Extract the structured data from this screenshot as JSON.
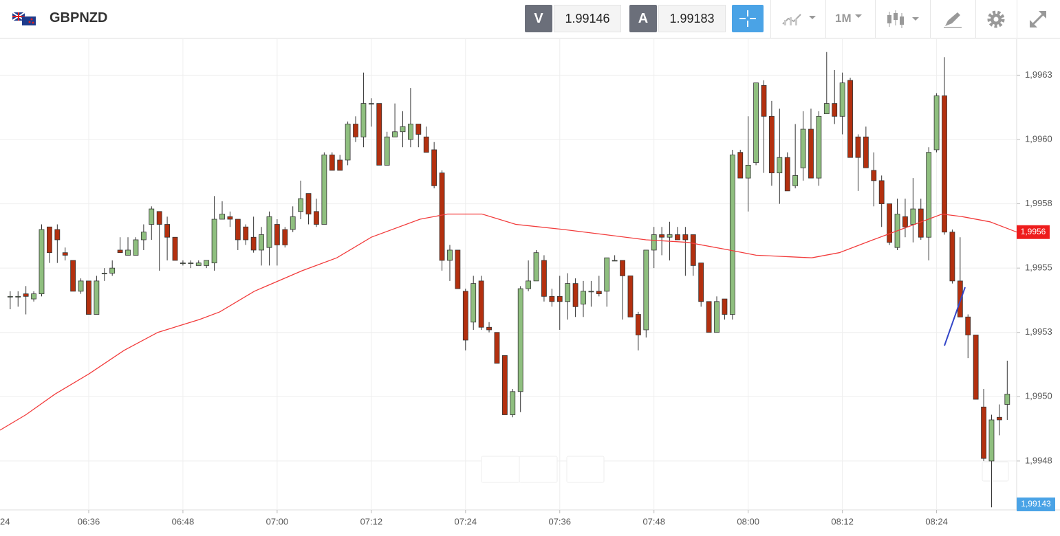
{
  "toolbar": {
    "symbol": "GBPNZD",
    "sell_label": "V",
    "sell_price": "1.99146",
    "buy_label": "A",
    "buy_price": "1.99183",
    "timeframe": "1M"
  },
  "chart_data": {
    "type": "candlestick",
    "x": [
      386,
      387,
      388,
      389,
      390,
      391,
      392,
      393,
      394,
      395,
      396,
      397,
      398,
      399,
      400,
      401,
      402,
      403,
      404,
      405,
      406,
      407,
      408,
      409,
      410,
      411,
      412,
      413,
      414,
      415,
      416,
      417,
      418,
      419,
      420,
      421,
      422,
      423,
      424,
      425,
      426,
      427,
      428,
      429,
      430,
      431,
      432,
      433,
      434,
      435,
      436,
      437,
      438,
      439,
      440,
      441,
      442,
      443,
      444,
      445,
      446,
      447,
      448,
      449,
      450,
      451,
      452,
      453,
      454,
      455,
      456,
      457,
      458,
      459,
      460,
      461,
      462,
      463,
      464,
      465,
      466,
      467,
      468,
      469,
      470,
      471,
      472,
      473,
      474,
      475,
      476,
      477,
      478,
      479,
      480,
      481,
      482,
      483,
      484,
      485,
      486,
      487,
      488,
      489,
      490,
      491,
      492,
      493,
      494,
      495,
      496,
      497,
      498,
      499,
      500,
      501,
      502,
      503,
      504,
      505,
      506,
      507,
      508,
      509,
      510,
      511,
      512,
      513
    ],
    "open": [
      1.99539,
      1.99539,
      1.9954,
      1.99538,
      1.9954,
      1.99566,
      1.99565,
      1.99556,
      1.99553,
      1.99541,
      1.99545,
      1.99532,
      1.99548,
      1.99548,
      1.99557,
      1.99555,
      1.99555,
      1.99561,
      1.99567,
      1.99572,
      1.99567,
      1.99562,
      1.99552,
      1.99552,
      1.99551,
      1.99551,
      1.99552,
      1.99569,
      1.9957,
      1.99569,
      1.99566,
      1.99562,
      1.99557,
      1.99558,
      1.99567,
      1.99565,
      1.99565,
      1.99572,
      1.99579,
      1.99572,
      1.99567,
      1.99594,
      1.99592,
      1.99592,
      1.99606,
      1.99601,
      1.99614,
      1.99614,
      1.9959,
      1.99601,
      1.99603,
      1.996,
      1.99606,
      1.99601,
      1.99596,
      1.99587,
      1.99553,
      1.99557,
      1.99541,
      1.99529,
      1.99545,
      1.99527,
      1.99525,
      1.99516,
      1.99493,
      1.99502,
      1.99542,
      1.99545,
      1.99553,
      1.99539,
      1.99539,
      1.99537,
      1.99544,
      1.99536,
      1.99541,
      1.99541,
      1.99541,
      1.99553,
      1.99553,
      1.99547,
      1.99532,
      1.99526,
      1.99557,
      1.99563,
      1.99562,
      1.99563,
      1.99563,
      1.99563,
      1.99552,
      1.99537,
      1.99525,
      1.99538,
      1.99532,
      1.99595,
      1.99585,
      1.99591,
      1.99621,
      1.99609,
      1.99587,
      1.99593,
      1.99582,
      1.99589,
      1.99604,
      1.99585,
      1.9961,
      1.99614,
      1.99609,
      1.99623,
      1.99601,
      1.99601,
      1.99588,
      1.99584,
      1.99575,
      1.99558,
      1.9957,
      1.99567,
      1.99573,
      1.99562,
      1.99596,
      1.99617,
      1.99564,
      1.99545,
      1.99531,
      1.99524,
      1.99496,
      1.99475,
      1.99492,
      1.99497
    ],
    "high": [
      1.99541,
      1.99541,
      1.99543,
      1.99541,
      1.99567,
      1.99566,
      1.99567,
      1.99558,
      1.99553,
      1.99546,
      1.99545,
      1.99547,
      1.9955,
      1.99553,
      1.99562,
      1.99562,
      1.99562,
      1.99567,
      1.99574,
      1.99572,
      1.9957,
      1.99562,
      1.99553,
      1.99553,
      1.99553,
      1.99553,
      1.99578,
      1.99576,
      1.99572,
      1.99569,
      1.99567,
      1.9957,
      1.99566,
      1.99572,
      1.99569,
      1.99566,
      1.99574,
      1.99584,
      1.99579,
      1.99577,
      1.99595,
      1.99595,
      1.99594,
      1.99607,
      1.99609,
      1.99626,
      1.99616,
      1.99614,
      1.99603,
      1.99614,
      1.99611,
      1.9962,
      1.99606,
      1.99605,
      1.99599,
      1.99588,
      1.99559,
      1.99557,
      1.99542,
      1.99547,
      1.99547,
      1.99529,
      1.99525,
      1.99516,
      1.99503,
      1.99543,
      1.99553,
      1.99557,
      1.99555,
      1.99542,
      1.99547,
      1.99548,
      1.99546,
      1.99545,
      1.99545,
      1.99547,
      1.99554,
      1.99555,
      1.99553,
      1.99547,
      1.99533,
      1.99557,
      1.99566,
      1.99566,
      1.99568,
      1.99566,
      1.99566,
      1.99563,
      1.99552,
      1.99537,
      1.99539,
      1.99538,
      1.99596,
      1.99596,
      1.99609,
      1.99622,
      1.99623,
      1.99615,
      1.99612,
      1.99595,
      1.99606,
      1.99611,
      1.99612,
      1.99611,
      1.99634,
      1.99627,
      1.99626,
      1.99624,
      1.99602,
      1.99605,
      1.99595,
      1.99586,
      1.99575,
      1.99577,
      1.99577,
      1.99585,
      1.99577,
      1.99597,
      1.99618,
      1.99632,
      1.99565,
      1.99562,
      1.99532,
      1.99524,
      1.99503,
      1.99493,
      1.99497,
      1.99514
    ],
    "low": [
      1.99534,
      1.99535,
      1.99532,
      1.99537,
      1.99539,
      1.99552,
      1.99552,
      1.99553,
      1.99541,
      1.9954,
      1.99532,
      1.99532,
      1.99545,
      1.99547,
      1.99556,
      1.99555,
      1.99555,
      1.99557,
      1.99561,
      1.99549,
      1.99553,
      1.99553,
      1.99551,
      1.9955,
      1.99551,
      1.9955,
      1.99549,
      1.99569,
      1.99566,
      1.99557,
      1.99559,
      1.99556,
      1.99551,
      1.99551,
      1.99551,
      1.99558,
      1.99564,
      1.99569,
      1.99567,
      1.99566,
      1.99567,
      1.99588,
      1.99588,
      1.9959,
      1.99599,
      1.99597,
      1.99605,
      1.9959,
      1.9959,
      1.99601,
      1.99597,
      1.99597,
      1.99597,
      1.99595,
      1.99581,
      1.99549,
      1.99545,
      1.99542,
      1.99518,
      1.99526,
      1.99526,
      1.99525,
      1.99513,
      1.99493,
      1.99492,
      1.99494,
      1.99541,
      1.99545,
      1.99537,
      1.99535,
      1.99526,
      1.9953,
      1.99531,
      1.99531,
      1.99535,
      1.99539,
      1.99535,
      1.99553,
      1.9953,
      1.99531,
      1.99518,
      1.99523,
      1.9955,
      1.99555,
      1.99553,
      1.99561,
      1.99547,
      1.99547,
      1.99535,
      1.99525,
      1.99525,
      1.9953,
      1.9953,
      1.99585,
      1.99572,
      1.9959,
      1.99587,
      1.99582,
      1.99575,
      1.9958,
      1.99581,
      1.99584,
      1.99585,
      1.99582,
      1.9961,
      1.99606,
      1.99602,
      1.99593,
      1.9958,
      1.99589,
      1.99574,
      1.99566,
      1.99559,
      1.99557,
      1.99562,
      1.9956,
      1.99561,
      1.99553,
      1.99595,
      1.99563,
      1.99544,
      1.99531,
      1.99515,
      1.99499,
      1.99475,
      1.99457,
      1.99485,
      1.99491
    ],
    "close": [
      1.99539,
      1.99539,
      1.99539,
      1.9954,
      1.99565,
      1.99556,
      1.99561,
      1.99555,
      1.99541,
      1.99545,
      1.99532,
      1.99545,
      1.99548,
      1.9955,
      1.99556,
      1.99557,
      1.99561,
      1.99564,
      1.99573,
      1.99567,
      1.99562,
      1.99553,
      1.99552,
      1.99552,
      1.99552,
      1.99553,
      1.99569,
      1.99571,
      1.99569,
      1.99561,
      1.99561,
      1.99557,
      1.99563,
      1.9957,
      1.99559,
      1.99559,
      1.9957,
      1.99577,
      1.99571,
      1.99567,
      1.99594,
      1.99588,
      1.99588,
      1.99606,
      1.99601,
      1.99614,
      1.99614,
      1.9959,
      1.99601,
      1.99603,
      1.99605,
      1.99606,
      1.99602,
      1.99595,
      1.99582,
      1.99553,
      1.99557,
      1.99542,
      1.99522,
      1.99544,
      1.99527,
      1.99526,
      1.99513,
      1.99493,
      1.99502,
      1.99542,
      1.99545,
      1.99556,
      1.99539,
      1.99537,
      1.99537,
      1.99544,
      1.99535,
      1.99541,
      1.99541,
      1.9954,
      1.99554,
      1.99553,
      1.99547,
      1.99531,
      1.99524,
      1.99557,
      1.99563,
      1.99562,
      1.99563,
      1.99561,
      1.99561,
      1.99551,
      1.99537,
      1.99525,
      1.99537,
      1.99532,
      1.99594,
      1.99585,
      1.9959,
      1.99622,
      1.99609,
      1.99587,
      1.99593,
      1.9958,
      1.99586,
      1.99604,
      1.99585,
      1.99609,
      1.99614,
      1.99609,
      1.99622,
      1.99593,
      1.99593,
      1.99589,
      1.99584,
      1.99575,
      1.9956,
      1.99571,
      1.99566,
      1.99573,
      1.99562,
      1.99595,
      1.99617,
      1.99564,
      1.99545,
      1.99531,
      1.99524,
      1.99499,
      1.99476,
      1.99491,
      1.99491,
      1.99501
    ],
    "up_color": "#8fbf7f",
    "down_color": "#b3300f",
    "wick_color": "#333333",
    "ma": {
      "color": "#f23c3c",
      "x": [
        384.7,
        388.0,
        391.7,
        396.1,
        400.5,
        404.8,
        410.1,
        412.7,
        417.1,
        423.2,
        427.6,
        432.0,
        438.2,
        441.7,
        446.1,
        450.4,
        456.5,
        461.8,
        467.0,
        472.3,
        477.6,
        481.0,
        488.1,
        491.6,
        495.9,
        501.2,
        504.7,
        507.3,
        510.8,
        514.2
      ],
      "values": [
        1.99487,
        1.99493,
        1.99501,
        1.99509,
        1.99518,
        1.99525,
        1.9953,
        1.99533,
        1.99541,
        1.99549,
        1.99554,
        1.99562,
        1.99569,
        1.99571,
        1.99571,
        1.99567,
        1.99565,
        1.99563,
        1.99561,
        1.9956,
        1.99557,
        1.99555,
        1.99554,
        1.99556,
        1.99561,
        1.99567,
        1.99571,
        1.9957,
        1.99568,
        1.99564
      ]
    },
    "ma_label": "1,9956",
    "price_label": "1,99143",
    "ylim": [
      1.99456,
      1.99639
    ],
    "yticks": [
      {
        "value": 1.99625,
        "label": "1,9963"
      },
      {
        "value": 1.996,
        "label": "1,9960"
      },
      {
        "value": 1.99575,
        "label": "1,9958"
      },
      {
        "value": 1.9955,
        "label": "1,9955"
      },
      {
        "value": 1.99525,
        "label": "1,9953"
      },
      {
        "value": 1.995,
        "label": "1,9950"
      },
      {
        "value": 1.99475,
        "label": "1,9948"
      }
    ],
    "xlim": [
      384.7,
      514.2
    ],
    "xticks": [
      {
        "value": 384,
        "label": "24"
      },
      {
        "value": 396,
        "label": "06:36"
      },
      {
        "value": 408,
        "label": "06:48"
      },
      {
        "value": 420,
        "label": "07:00"
      },
      {
        "value": 432,
        "label": "07:12"
      },
      {
        "value": 444,
        "label": "07:24"
      },
      {
        "value": 456,
        "label": "07:36"
      },
      {
        "value": 468,
        "label": "07:48"
      },
      {
        "value": 480,
        "label": "08:00"
      },
      {
        "value": 492,
        "label": "08:12"
      },
      {
        "value": 504,
        "label": "08:24"
      }
    ],
    "grid": true
  }
}
